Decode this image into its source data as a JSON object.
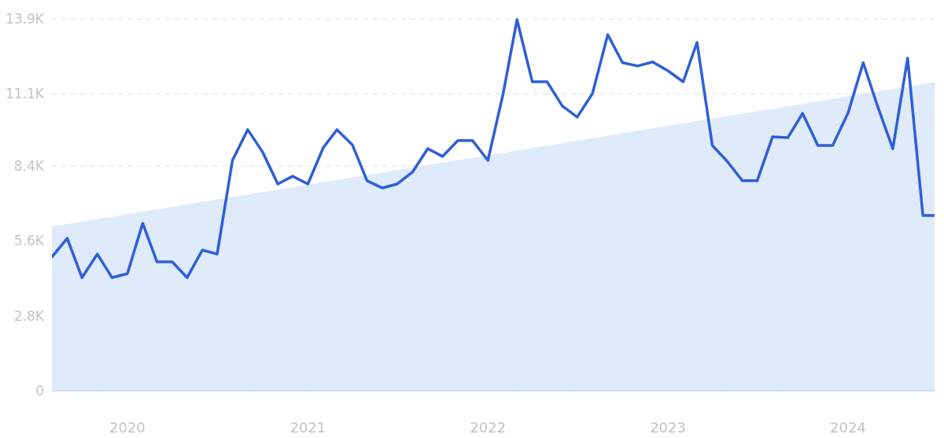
{
  "chart_data": {
    "type": "line",
    "x": [
      "2019-08",
      "2019-09",
      "2019-10",
      "2019-11",
      "2019-12",
      "2020-01",
      "2020-02",
      "2020-03",
      "2020-04",
      "2020-05",
      "2020-06",
      "2020-07",
      "2020-08",
      "2020-09",
      "2020-10",
      "2020-11",
      "2020-12",
      "2021-01",
      "2021-02",
      "2021-03",
      "2021-04",
      "2021-05",
      "2021-06",
      "2021-07",
      "2021-08",
      "2021-09",
      "2021-10",
      "2021-11",
      "2021-12",
      "2022-01",
      "2022-02",
      "2022-03",
      "2022-04",
      "2022-05",
      "2022-06",
      "2022-07",
      "2022-08",
      "2022-09",
      "2022-10",
      "2022-11",
      "2022-12",
      "2023-01",
      "2023-02",
      "2023-03",
      "2023-04",
      "2023-05",
      "2023-06",
      "2023-07",
      "2023-08",
      "2023-09",
      "2023-10",
      "2023-11",
      "2023-12",
      "2024-01",
      "2024-02",
      "2024-03",
      "2024-04",
      "2024-05",
      "2024-06",
      "2024-07"
    ],
    "series": [
      {
        "type": "area",
        "color": "#dfeafb",
        "x": [
          "2019-08",
          "2024-07"
        ],
        "values": [
          6140,
          11550
        ]
      },
      {
        "color": "#2f5fd6",
        "values": [
          5000,
          5700,
          4230,
          5110,
          4230,
          4380,
          6260,
          4820,
          4820,
          4230,
          5260,
          5110,
          8610,
          9760,
          8930,
          7730,
          8020,
          7730,
          9080,
          9760,
          9200,
          7850,
          7580,
          7730,
          8170,
          9050,
          8760,
          9350,
          9350,
          8610,
          11110,
          13870,
          11550,
          11550,
          10640,
          10230,
          11110,
          13310,
          12260,
          12140,
          12290,
          11960,
          11550,
          13020,
          9170,
          8580,
          7850,
          7850,
          9490,
          9460,
          10370,
          9170,
          9170,
          10370,
          12260,
          10640,
          9050,
          12430,
          6550,
          6550
        ]
      }
    ],
    "xlim": [
      "2019-08",
      "2024-07"
    ],
    "xticks": [
      "2020",
      "2021",
      "2022",
      "2023",
      "2024"
    ],
    "ylim": [
      0,
      13900
    ],
    "yticks": [
      {
        "value": 0,
        "label": "0"
      },
      {
        "value": 2800,
        "label": "2.8K"
      },
      {
        "value": 5600,
        "label": "5.6K"
      },
      {
        "value": 8400,
        "label": "8.4K"
      },
      {
        "value": 11100,
        "label": "11.1K"
      },
      {
        "value": 13900,
        "label": "13.9K"
      }
    ],
    "grid": "y",
    "marker": "none",
    "line_style": "solid"
  }
}
